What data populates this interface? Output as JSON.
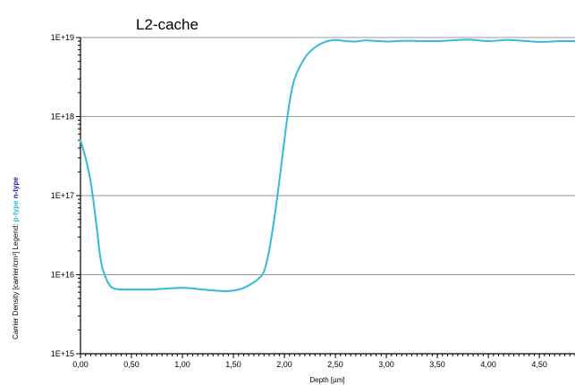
{
  "chart_data": {
    "type": "line",
    "title": "L2-cache",
    "xlabel": "Depth [µm]",
    "ylabel_prefix": "Carrier Density [carrier/cm³] Legend: ",
    "legend": [
      {
        "label": "p-type",
        "color": "#33bbd8"
      },
      {
        "label": "n-type",
        "color": "#2222aa"
      }
    ],
    "x_scale": "linear",
    "y_scale": "log",
    "xlim": [
      0,
      4.85
    ],
    "ylim": [
      1000000000000000.0,
      1e+19
    ],
    "x_ticks": [
      {
        "value": 0,
        "label": "0,00"
      },
      {
        "value": 0.5,
        "label": "0,50"
      },
      {
        "value": 1.0,
        "label": "1,00"
      },
      {
        "value": 1.5,
        "label": "1,50"
      },
      {
        "value": 2.0,
        "label": "2,00"
      },
      {
        "value": 2.5,
        "label": "2,50"
      },
      {
        "value": 3.0,
        "label": "3,00"
      },
      {
        "value": 3.5,
        "label": "3,50"
      },
      {
        "value": 4.0,
        "label": "4,00"
      },
      {
        "value": 4.5,
        "label": "4,50"
      }
    ],
    "y_ticks": [
      {
        "value": 1000000000000000.0,
        "label": "1E+15"
      },
      {
        "value": 1e+16,
        "label": "1E+16"
      },
      {
        "value": 1e+17,
        "label": "1E+17"
      },
      {
        "value": 1e+18,
        "label": "1E+18"
      },
      {
        "value": 1e+19,
        "label": "1E+19"
      }
    ],
    "grid": "horizontal",
    "series": [
      {
        "name": "p-type",
        "color": "#33bbd8",
        "x": [
          0.0,
          0.05,
          0.1,
          0.15,
          0.2,
          0.25,
          0.3,
          0.35,
          0.4,
          0.5,
          0.7,
          1.0,
          1.2,
          1.4,
          1.5,
          1.6,
          1.7,
          1.75,
          1.8,
          1.85,
          1.9,
          1.95,
          2.0,
          2.05,
          2.1,
          2.2,
          2.3,
          2.4,
          2.5,
          2.6,
          2.7,
          2.8,
          3.0,
          3.2,
          3.5,
          3.8,
          4.0,
          4.2,
          4.5,
          4.7,
          4.85
        ],
        "y": [
          5e+17,
          3e+17,
          1.5e+17,
          5e+16,
          1.5e+16,
          9000000000000000.0,
          7000000000000000.0,
          6600000000000000.0,
          6500000000000000.0,
          6500000000000000.0,
          6500000000000000.0,
          6800000000000000.0,
          6500000000000000.0,
          6200000000000000.0,
          6300000000000000.0,
          6800000000000000.0,
          8000000000000000.0,
          9000000000000000.0,
          1.1e+16,
          2e+16,
          5e+16,
          1.5e+17,
          5e+17,
          1.5e+18,
          3e+18,
          5.5e+18,
          7.5e+18,
          8.8e+18,
          9.3e+18,
          9e+18,
          8.9e+18,
          9.2e+18,
          8.9e+18,
          9.1e+18,
          9e+18,
          9.4e+18,
          9e+18,
          9.3e+18,
          8.8e+18,
          9e+18,
          9e+18
        ]
      }
    ]
  }
}
